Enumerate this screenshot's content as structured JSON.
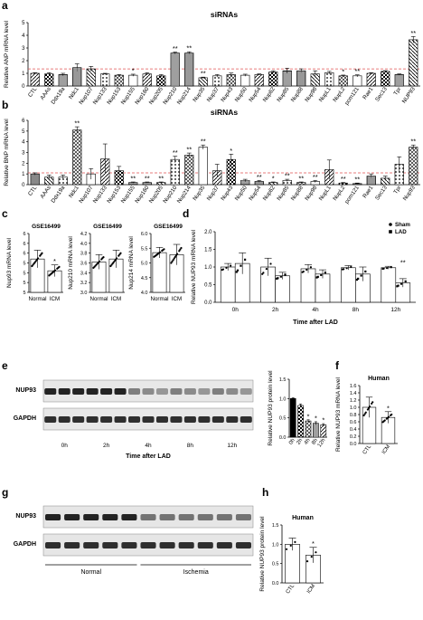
{
  "panel_letters": [
    "a",
    "b",
    "c",
    "d",
    "e",
    "f",
    "g",
    "h"
  ],
  "chart_data": [
    {
      "id": "a",
      "type": "bar",
      "title": "siRNAs",
      "ylabel": "Relative ANP mRNA level",
      "ylim": [
        0,
        5
      ],
      "yticks": [
        0,
        1,
        2,
        3,
        4,
        5
      ],
      "reference_line": 1.35,
      "categories": [
        "CTL",
        "AAAs",
        "Ddx19a",
        "Ndc1",
        "Nup107",
        "Nup133",
        "Nup153",
        "Nup155",
        "Nup160",
        "Nup205",
        "Nup210",
        "Nup214",
        "Nup35",
        "Nup37",
        "Nup43",
        "Nup50",
        "Nup54",
        "Nup62",
        "Nup85",
        "Nup88",
        "Nup98",
        "NupL1",
        "NupL2",
        "pom121",
        "Rae1",
        "Sec13",
        "Tpr",
        "NUP93"
      ],
      "values": [
        1.0,
        0.95,
        0.9,
        1.45,
        1.35,
        0.95,
        0.85,
        0.85,
        0.95,
        0.8,
        2.6,
        2.6,
        0.65,
        0.8,
        0.9,
        0.85,
        0.9,
        1.1,
        1.2,
        1.2,
        0.95,
        1.05,
        0.8,
        0.8,
        1.0,
        1.15,
        0.9,
        3.65
      ],
      "errors": [
        0.05,
        0.1,
        0.1,
        0.3,
        0.2,
        0.05,
        0.05,
        0.08,
        0.1,
        0.1,
        0.08,
        0.1,
        0.05,
        0.1,
        0.12,
        0.08,
        0.06,
        0.1,
        0.2,
        0.15,
        0.25,
        0.1,
        0.06,
        0.08,
        0.05,
        0.06,
        0.05,
        0.25
      ],
      "annotations": [
        "",
        "",
        "",
        "",
        "",
        "",
        "",
        "*",
        "",
        "",
        "**",
        "**",
        "**",
        "",
        "",
        "",
        "",
        "",
        "",
        "",
        "",
        "",
        "*",
        "**",
        "",
        "",
        "",
        "**"
      ]
    },
    {
      "id": "b",
      "type": "bar",
      "title": "siRNAs",
      "ylabel": "Relative BNP mRNA level",
      "ylim": [
        0,
        6
      ],
      "yticks": [
        0,
        1,
        2,
        3,
        4,
        5,
        6
      ],
      "reference_line": 1.1,
      "categories": [
        "CTL",
        "AAAs",
        "Ddx19a",
        "Ndc1",
        "Nup107",
        "Nup133",
        "Nup153",
        "Nup155",
        "Nup160",
        "Nup205",
        "Nup210",
        "Nup214",
        "Nup35",
        "Nup37",
        "Nup43",
        "Nup50",
        "Nup54",
        "Nup62",
        "Nup85",
        "Nup88",
        "Nup98",
        "NupL1",
        "NupL2",
        "pom121",
        "Rae1",
        "Sec13",
        "Tpr",
        "Nup93"
      ],
      "values": [
        1.0,
        0.7,
        0.7,
        5.1,
        1.0,
        2.4,
        1.3,
        0.2,
        0.2,
        0.2,
        2.35,
        2.75,
        3.5,
        1.3,
        2.35,
        0.4,
        0.3,
        0.2,
        0.4,
        0.2,
        0.3,
        1.4,
        0.15,
        0.1,
        0.8,
        0.6,
        1.9,
        3.5
      ],
      "errors": [
        0.1,
        0.2,
        0.2,
        0.3,
        0.5,
        1.4,
        0.4,
        0.05,
        0.05,
        0.05,
        0.3,
        0.2,
        0.2,
        0.6,
        0.5,
        0.1,
        0.1,
        0.05,
        0.1,
        0.05,
        0.1,
        0.9,
        0.05,
        0.05,
        0.2,
        0.2,
        0.7,
        0.2
      ],
      "annotations": [
        "",
        "",
        "",
        "**",
        "",
        "",
        "",
        "**",
        "**",
        "**",
        "**",
        "**",
        "**",
        "",
        "*",
        "",
        "**",
        "*",
        "**",
        "**",
        "**",
        "",
        "**",
        "**",
        "",
        "",
        "",
        "**"
      ]
    },
    {
      "id": "c1",
      "type": "bar",
      "title": "GSE16499",
      "ylabel": "Nup93 mRNA level",
      "ylim": [
        4.8,
        6.0
      ],
      "yticks": [
        4.8,
        5.0,
        5.2,
        5.4,
        5.6,
        5.8,
        6.0
      ],
      "categories": [
        "Normal",
        "ICM"
      ],
      "values": [
        5.48,
        5.24
      ],
      "errors": [
        0.18,
        0.12
      ],
      "annotations": [
        "",
        "*"
      ]
    },
    {
      "id": "c2",
      "type": "bar",
      "title": "GSE16499",
      "ylabel": "Nup210 mRNA level",
      "ylim": [
        3.0,
        4.2
      ],
      "yticks": [
        3.0,
        3.2,
        3.4,
        3.6,
        3.8,
        4.0,
        4.2
      ],
      "categories": [
        "Normal",
        "ICM"
      ],
      "values": [
        3.62,
        3.68
      ],
      "errors": [
        0.15,
        0.18
      ],
      "annotations": [
        "",
        ""
      ]
    },
    {
      "id": "c3",
      "type": "bar",
      "title": "GSE16499",
      "ylabel": "Nup214 mRNA level",
      "ylim": [
        4.0,
        6.0
      ],
      "yticks": [
        4.0,
        4.5,
        5.0,
        5.5,
        6.0
      ],
      "categories": [
        "Normal",
        "ICM"
      ],
      "values": [
        5.35,
        5.28
      ],
      "errors": [
        0.18,
        0.35
      ],
      "annotations": [
        "",
        ""
      ]
    },
    {
      "id": "d",
      "type": "bar",
      "ylabel": "Relative NUP93 mRNA level",
      "xlabel": "Time after LAD",
      "ylim": [
        0,
        2.0
      ],
      "yticks": [
        0.0,
        0.5,
        1.0,
        1.5,
        2.0
      ],
      "categories": [
        "0h",
        "2h",
        "4h",
        "8h",
        "12h"
      ],
      "series": [
        {
          "name": "Sham",
          "values": [
            1.0,
            1.0,
            0.95,
            0.98,
            0.98
          ],
          "errors": [
            0.1,
            0.25,
            0.12,
            0.06,
            0.04
          ]
        },
        {
          "name": "LAD",
          "values": [
            1.1,
            0.75,
            0.8,
            0.8,
            0.55
          ],
          "errors": [
            0.3,
            0.1,
            0.12,
            0.2,
            0.12
          ]
        }
      ],
      "annotations": [
        "",
        "",
        "",
        "",
        "**"
      ]
    },
    {
      "id": "e_quant",
      "type": "bar",
      "ylabel": "Relative NUP93 protein level",
      "ylim": [
        0,
        1.5
      ],
      "yticks": [
        0.0,
        0.5,
        1.0,
        1.5
      ],
      "categories": [
        "0h",
        "2h",
        "4h",
        "8h",
        "12h"
      ],
      "values": [
        1.0,
        0.82,
        0.42,
        0.36,
        0.32
      ],
      "errors": [
        0.02,
        0.04,
        0.03,
        0.04,
        0.03
      ],
      "annotations": [
        "",
        "",
        "*",
        "*",
        "*"
      ]
    },
    {
      "id": "f",
      "type": "bar",
      "title": "Human",
      "ylabel": "Relative NUP93 mRNA level",
      "ylim": [
        0,
        1.6
      ],
      "yticks": [
        0.0,
        0.2,
        0.4,
        0.6,
        0.8,
        1.0,
        1.2,
        1.4,
        1.6
      ],
      "categories": [
        "CTL",
        "ICM"
      ],
      "values": [
        1.0,
        0.72
      ],
      "errors": [
        0.28,
        0.16
      ],
      "annotations": [
        "",
        "*"
      ]
    },
    {
      "id": "h",
      "type": "bar",
      "title": "Human",
      "ylabel": "Relative NUP93 protein level",
      "ylim": [
        0,
        1.5
      ],
      "yticks": [
        0.0,
        0.5,
        1.0,
        1.5
      ],
      "categories": [
        "CTL",
        "ICM"
      ],
      "values": [
        1.0,
        0.72
      ],
      "errors": [
        0.16,
        0.2
      ],
      "annotations": [
        "",
        "*"
      ]
    }
  ],
  "blot_e": {
    "rows": [
      "NUP93",
      "GAPDH"
    ],
    "time_labels": [
      "0h",
      "2h",
      "4h",
      "8h",
      "12h"
    ],
    "xlabel": "Time after LAD"
  },
  "blot_g": {
    "rows": [
      "NUP93",
      "GAPDH"
    ],
    "groups": [
      "Normal",
      "Ischemia"
    ]
  }
}
